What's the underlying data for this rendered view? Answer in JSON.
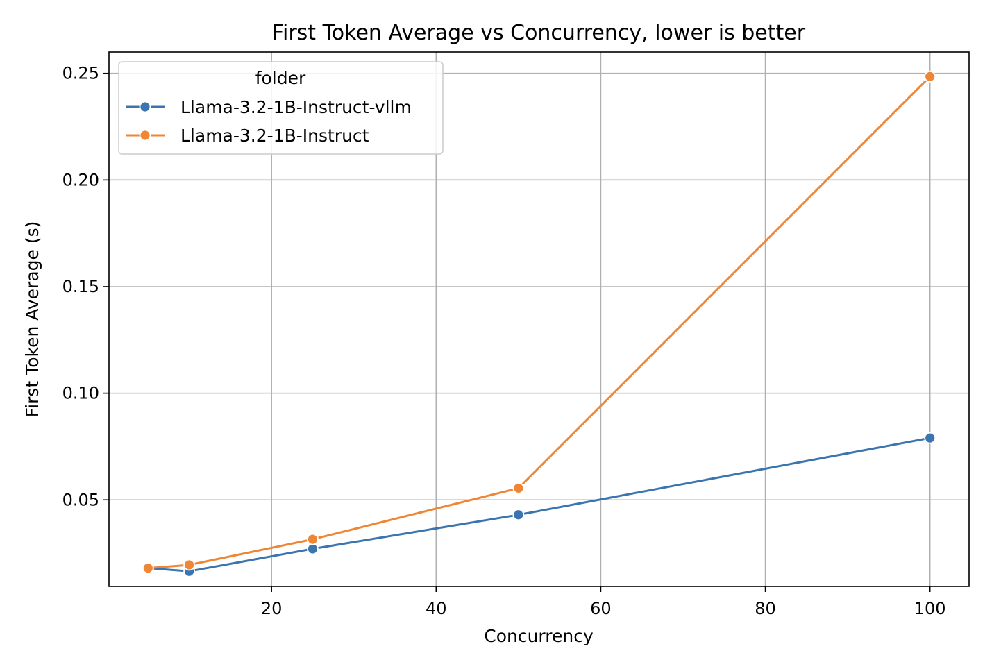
{
  "chart_data": {
    "type": "line",
    "title": "First Token Average vs Concurrency, lower is better",
    "xlabel": "Concurrency",
    "ylabel": "First Token Average (s)",
    "xlim": [
      0.25,
      104.75
    ],
    "ylim": [
      0.0094,
      0.26
    ],
    "x_ticks": [
      20,
      40,
      60,
      80,
      100
    ],
    "x_tick_labels": [
      "20",
      "40",
      "60",
      "80",
      "100"
    ],
    "y_ticks": [
      0.05,
      0.1,
      0.15,
      0.2,
      0.25
    ],
    "y_tick_labels": [
      "0.05",
      "0.10",
      "0.15",
      "0.20",
      "0.25"
    ],
    "grid": true,
    "legend": {
      "title": "folder",
      "placement": "top-left"
    },
    "series": [
      {
        "name": "Llama-3.2-1B-Instruct-vllm",
        "color": "#3b75af",
        "x": [
          5,
          10,
          25,
          50,
          100
        ],
        "y": [
          0.018,
          0.0165,
          0.027,
          0.043,
          0.079
        ]
      },
      {
        "name": "Llama-3.2-1B-Instruct",
        "color": "#ef8636",
        "x": [
          5,
          10,
          25,
          50,
          100
        ],
        "y": [
          0.018,
          0.0195,
          0.0315,
          0.0555,
          0.2485
        ]
      }
    ]
  }
}
